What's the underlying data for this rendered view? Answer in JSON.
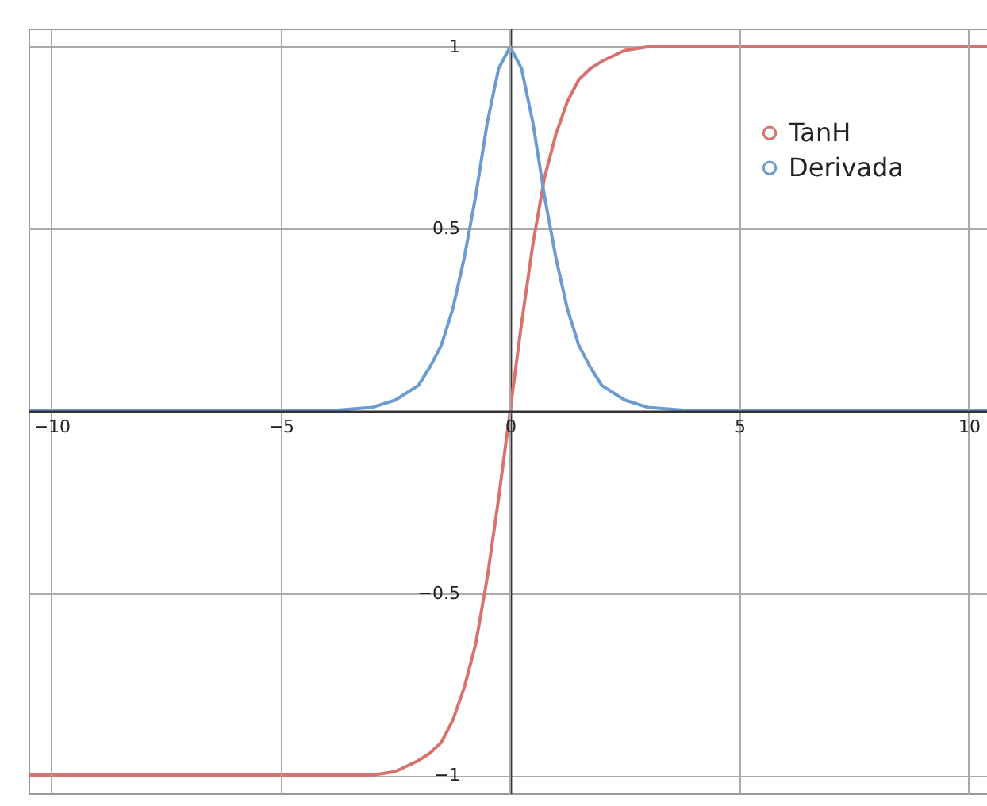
{
  "chart_data": {
    "type": "line",
    "x": [
      -10.5,
      -10,
      -5,
      -4,
      -3,
      -2.5,
      -2,
      -1.75,
      -1.5,
      -1.25,
      -1,
      -0.75,
      -0.5,
      -0.25,
      0,
      0.25,
      0.5,
      0.75,
      1,
      1.25,
      1.5,
      1.75,
      2,
      2.5,
      3,
      4,
      5,
      10,
      10.4
    ],
    "series": [
      {
        "name": "TanH",
        "color": "#d9726e",
        "values": [
          -1,
          -1,
          -1,
          -1,
          -1,
          -0.99,
          -0.96,
          -0.94,
          -0.91,
          -0.85,
          -0.76,
          -0.64,
          -0.46,
          -0.24,
          0,
          0.24,
          0.46,
          0.64,
          0.76,
          0.85,
          0.91,
          0.94,
          0.96,
          0.99,
          1,
          1,
          1,
          1,
          1
        ]
      },
      {
        "name": "Derivada",
        "color": "#6b9bd1",
        "values": [
          0,
          0,
          0,
          0,
          0.01,
          0.03,
          0.07,
          0.12,
          0.18,
          0.28,
          0.42,
          0.59,
          0.79,
          0.94,
          1,
          0.94,
          0.79,
          0.59,
          0.42,
          0.28,
          0.18,
          0.12,
          0.07,
          0.03,
          0.01,
          0,
          0,
          0,
          0
        ]
      }
    ],
    "xlim": [
      -10.5,
      10.4
    ],
    "ylim": [
      -1.05,
      1.05
    ],
    "xticks": [
      -10,
      -5,
      0,
      5,
      10
    ],
    "yticks": [
      -1,
      -0.5,
      {
        "value": 0,
        "label": null
      },
      0.5,
      1
    ],
    "grid": true,
    "legend": "top right",
    "marker": "none",
    "line_style": "solid"
  }
}
